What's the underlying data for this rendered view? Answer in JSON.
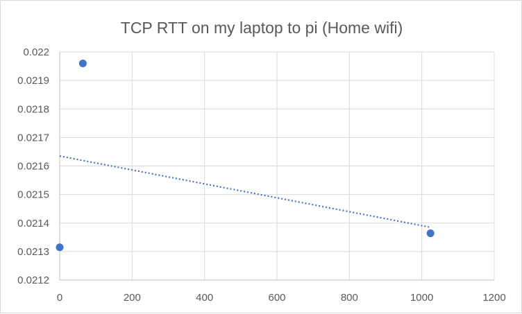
{
  "chart_data": {
    "type": "scatter",
    "title": "TCP RTT on my laptop to pi (Home wifi)",
    "xlabel": "",
    "ylabel": "",
    "xlim": [
      0,
      1200
    ],
    "ylim": [
      0.0212,
      0.022
    ],
    "x_ticks": [
      "0",
      "200",
      "400",
      "600",
      "800",
      "1000",
      "1200"
    ],
    "y_ticks": [
      "0.0212",
      "0.0213",
      "0.0214",
      "0.0215",
      "0.0216",
      "0.0217",
      "0.0218",
      "0.0219",
      "0.022"
    ],
    "grid": true,
    "legend": "none",
    "series": [
      {
        "color": "#4472C4",
        "points": [
          {
            "x": 0,
            "y": 0.021315
          },
          {
            "x": 64,
            "y": 0.02196
          },
          {
            "x": 1024,
            "y": 0.021364
          }
        ],
        "trendline": {
          "type": "linear",
          "style": "dotted",
          "x": [
            0,
            1024
          ],
          "y": [
            0.021635,
            0.021385
          ]
        }
      }
    ]
  }
}
